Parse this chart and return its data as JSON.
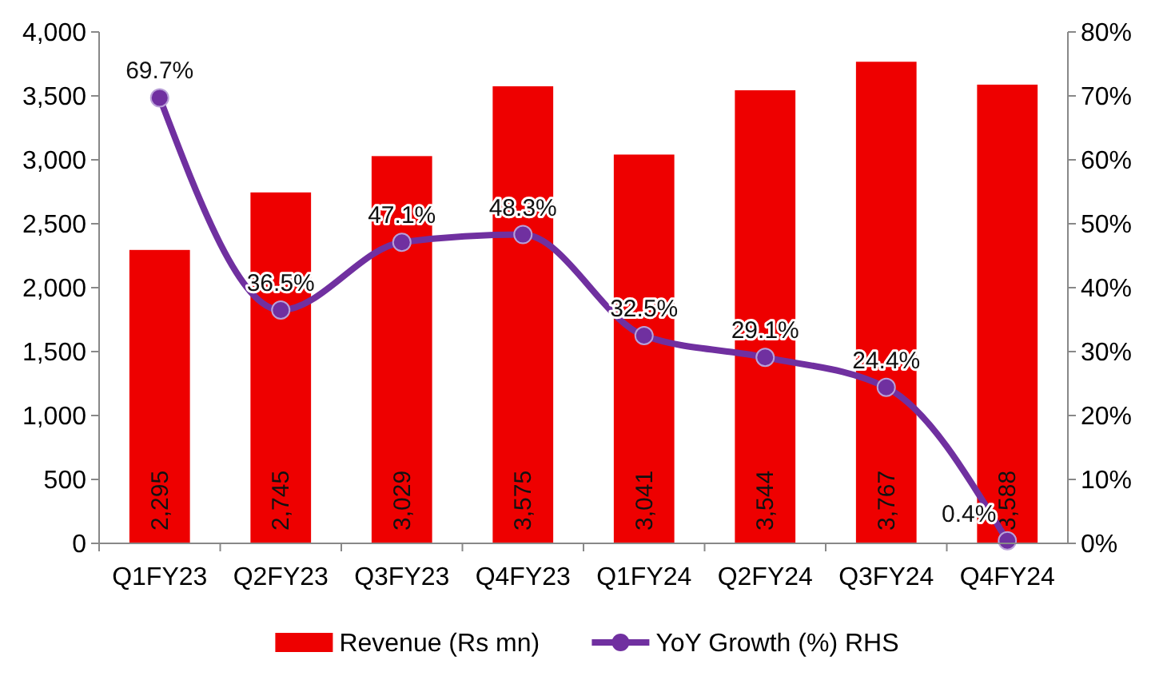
{
  "chart_data": {
    "type": "bar",
    "categories": [
      "Q1FY23",
      "Q2FY23",
      "Q3FY23",
      "Q4FY23",
      "Q1FY24",
      "Q2FY24",
      "Q3FY24",
      "Q4FY24"
    ],
    "series": [
      {
        "name": "Revenue (Rs mn)",
        "color": "#ee0000",
        "values": [
          2295,
          2745,
          3029,
          3575,
          3041,
          3544,
          3767,
          3588
        ],
        "value_labels": [
          "2,295",
          "2,745",
          "3,029",
          "3,575",
          "3,041",
          "3,544",
          "3,767",
          "3,588"
        ]
      },
      {
        "name": "YoY Growth (%) RHS",
        "type": "line",
        "axis": "y2",
        "color": "#7030a0",
        "marker": "circle",
        "values": [
          69.7,
          36.5,
          47.1,
          48.3,
          32.5,
          29.1,
          24.4,
          0.4
        ],
        "value_labels": [
          "69.7%",
          "36.5%",
          "47.1%",
          "48.3%",
          "32.5%",
          "29.1%",
          "24.4%",
          "0.4%"
        ]
      }
    ],
    "ylim": [
      0,
      4000
    ],
    "yticks": [
      {
        "value": 0,
        "label": "0"
      },
      {
        "value": 500,
        "label": "500"
      },
      {
        "value": 1000,
        "label": "1,000"
      },
      {
        "value": 1500,
        "label": "1,500"
      },
      {
        "value": 2000,
        "label": "2,000"
      },
      {
        "value": 2500,
        "label": "2,500"
      },
      {
        "value": 3000,
        "label": "3,000"
      },
      {
        "value": 3500,
        "label": "3,500"
      },
      {
        "value": 4000,
        "label": "4,000"
      }
    ],
    "y2lim": [
      0,
      80
    ],
    "y2ticks": [
      {
        "value": 0,
        "label": "0%"
      },
      {
        "value": 10,
        "label": "10%"
      },
      {
        "value": 20,
        "label": "20%"
      },
      {
        "value": 30,
        "label": "30%"
      },
      {
        "value": 40,
        "label": "40%"
      },
      {
        "value": 50,
        "label": "50%"
      },
      {
        "value": 60,
        "label": "60%"
      },
      {
        "value": 70,
        "label": "70%"
      },
      {
        "value": 80,
        "label": "80%"
      }
    ],
    "legend": "bottom"
  }
}
